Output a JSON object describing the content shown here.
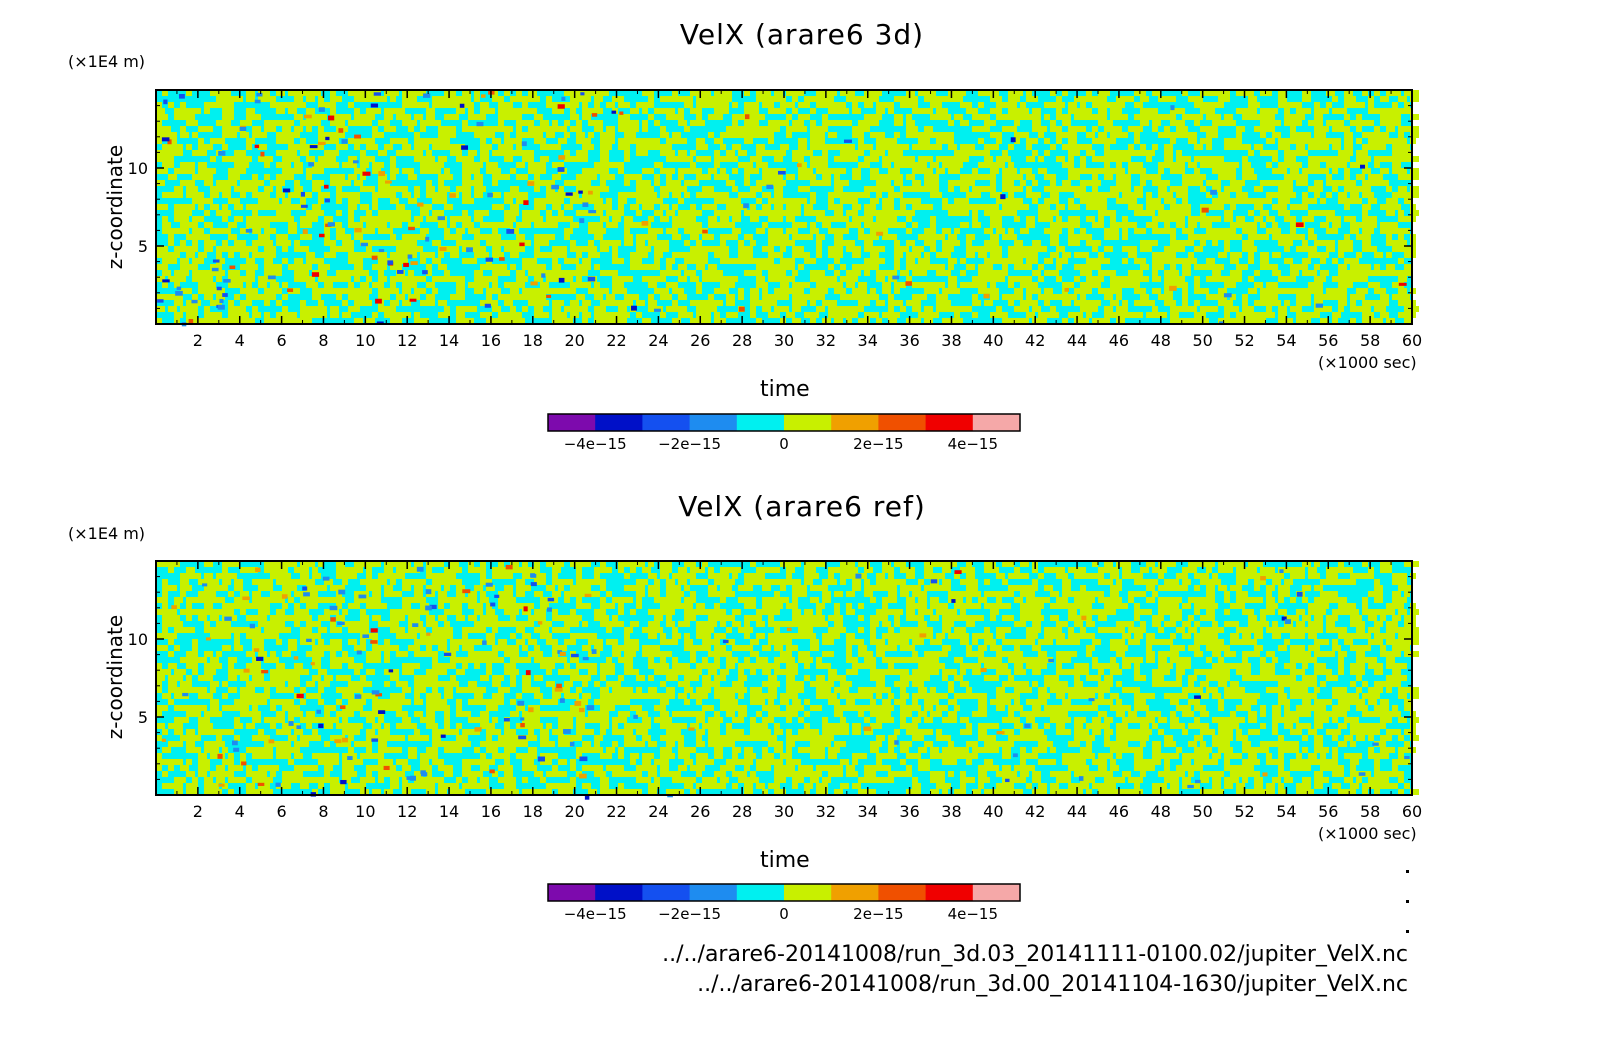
{
  "chart_data": [
    {
      "type": "heatmap",
      "title": "VelX (arare6 3d)",
      "xlabel": "time",
      "x_unit": "(×1000 sec)",
      "ylabel": "z-coordinate",
      "y_unit": "(×1E4 m)",
      "xlim": [
        0,
        60
      ],
      "ylim": [
        0,
        15
      ],
      "x_ticks": [
        "2",
        "4",
        "6",
        "8",
        "10",
        "12",
        "14",
        "16",
        "18",
        "20",
        "22",
        "24",
        "26",
        "28",
        "30",
        "32",
        "34",
        "36",
        "38",
        "40",
        "42",
        "44",
        "46",
        "48",
        "50",
        "52",
        "54",
        "56",
        "58",
        "60"
      ],
      "y_ticks": [
        "5",
        "10"
      ],
      "colorbar": {
        "levels": [
          -5e-15,
          -4e-15,
          -3e-15,
          -2e-15,
          -1e-15,
          0,
          1e-15,
          2e-15,
          3e-15,
          4e-15,
          5e-15
        ],
        "colors": [
          "#7d0aad",
          "#0010c8",
          "#1450f0",
          "#1e8cf0",
          "#00f0f0",
          "#c8f000",
          "#f0a000",
          "#f05000",
          "#f00000",
          "#f5a8a8"
        ],
        "tick_labels": [
          "−4e−15",
          "−2e−15",
          "0",
          "2e−15",
          "4e−15"
        ]
      }
    },
    {
      "type": "heatmap",
      "title": "VelX (arare6 ref)",
      "xlabel": "time",
      "x_unit": "(×1000 sec)",
      "ylabel": "z-coordinate",
      "y_unit": "(×1E4 m)",
      "xlim": [
        0,
        60
      ],
      "ylim": [
        0,
        15
      ],
      "x_ticks": [
        "2",
        "4",
        "6",
        "8",
        "10",
        "12",
        "14",
        "16",
        "18",
        "20",
        "22",
        "24",
        "26",
        "28",
        "30",
        "32",
        "34",
        "36",
        "38",
        "40",
        "42",
        "44",
        "46",
        "48",
        "50",
        "52",
        "54",
        "56",
        "58",
        "60"
      ],
      "y_ticks": [
        "5",
        "10"
      ],
      "colorbar": {
        "levels": [
          -5e-15,
          -4e-15,
          -3e-15,
          -2e-15,
          -1e-15,
          0,
          1e-15,
          2e-15,
          3e-15,
          4e-15,
          5e-15
        ],
        "colors": [
          "#7d0aad",
          "#0010c8",
          "#1450f0",
          "#1e8cf0",
          "#00f0f0",
          "#c8f000",
          "#f0a000",
          "#f05000",
          "#f00000",
          "#f5a8a8"
        ],
        "tick_labels": [
          "−4e−15",
          "−2e−15",
          "0",
          "2e−15",
          "4e−15"
        ]
      }
    }
  ],
  "footer": {
    "paths": [
      "../../arare6-20141008/run_3d.03_20141111-0100.02/jupiter_VelX.nc",
      "../../arare6-20141008/run_3d.00_20141104-1630/jupiter_VelX.nc"
    ]
  }
}
